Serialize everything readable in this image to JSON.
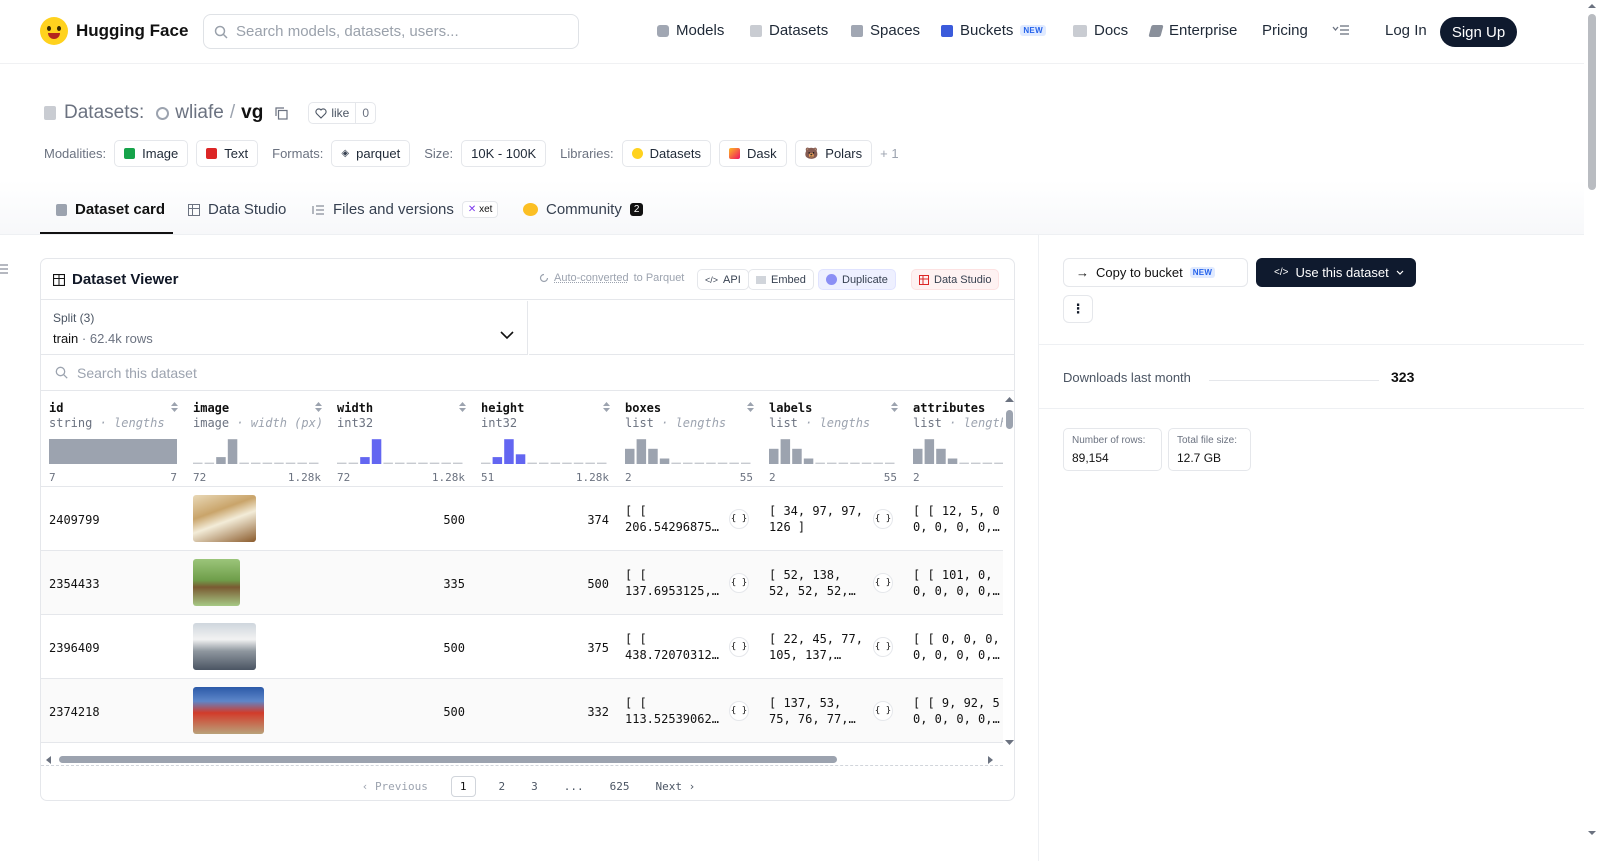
{
  "nav": {
    "brand": "Hugging Face",
    "search_placeholder": "Search models, datasets, users...",
    "items": [
      "Models",
      "Datasets",
      "Spaces",
      "Buckets",
      "Docs",
      "Enterprise",
      "Pricing"
    ],
    "new_badge": "NEW",
    "login": "Log In",
    "signup": "Sign Up"
  },
  "header": {
    "section": "Datasets:",
    "owner": "wliafe",
    "slash": "/",
    "repo": "vg",
    "like_label": "like",
    "like_count": "0",
    "modalities_label": "Modalities:",
    "modalities": [
      "Image",
      "Text"
    ],
    "formats_label": "Formats:",
    "formats": [
      "parquet"
    ],
    "size_label": "Size:",
    "size": "10K - 100K",
    "libraries_label": "Libraries:",
    "libraries": [
      "Datasets",
      "Dask",
      "Polars"
    ],
    "libraries_more": "+ 1"
  },
  "tabs": {
    "card": "Dataset card",
    "studio": "Data Studio",
    "files": "Files and versions",
    "xet": "xet",
    "community": "Community",
    "community_count": "2"
  },
  "viewer": {
    "title": "Dataset Viewer",
    "auto_converted": "Auto-converted",
    "auto_converted_suffix": "to Parquet",
    "api": "API",
    "embed": "Embed",
    "duplicate": "Duplicate",
    "data_studio": "Data Studio",
    "split_label": "Split (3)",
    "split_value": "train",
    "split_dot": "·",
    "split_rows": "62.4k rows",
    "search_placeholder": "Search this dataset",
    "columns": [
      {
        "name": "id",
        "type": "string",
        "stat": "lengths",
        "min": "7",
        "max": "7"
      },
      {
        "name": "image",
        "type": "image",
        "stat": "width (px)",
        "min": "72",
        "max": "1.28k"
      },
      {
        "name": "width",
        "type": "int32",
        "stat": "",
        "min": "72",
        "max": "1.28k"
      },
      {
        "name": "height",
        "type": "int32",
        "stat": "",
        "min": "51",
        "max": "1.28k"
      },
      {
        "name": "boxes",
        "type": "list",
        "stat": "lengths",
        "min": "2",
        "max": "55"
      },
      {
        "name": "labels",
        "type": "list",
        "stat": "lengths",
        "min": "2",
        "max": "55"
      },
      {
        "name": "attributes",
        "type": "list",
        "stat": "length",
        "min": "2",
        "max": ""
      }
    ],
    "type_sep": " · ",
    "rows": [
      {
        "id": "2409799",
        "width": "500",
        "height": "374",
        "boxes": "[ [\n206.54296875…",
        "labels": "[ 34, 97, 97,\n126 ]",
        "attributes": "[ [ 12, 5, 0\n0, 0, 0, 0,…"
      },
      {
        "id": "2354433",
        "width": "335",
        "height": "500",
        "boxes": "[ [\n137.6953125,…",
        "labels": "[ 52, 138,\n52, 52, 52,…",
        "attributes": "[ [ 101, 0,\n0, 0, 0, 0,…"
      },
      {
        "id": "2396409",
        "width": "500",
        "height": "375",
        "boxes": "[ [\n438.72070312…",
        "labels": "[ 22, 45, 77,\n105, 137,…",
        "attributes": "[ [ 0, 0, 0,\n0, 0, 0, 0,…"
      },
      {
        "id": "2374218",
        "width": "500",
        "height": "332",
        "boxes": "[ [\n113.52539062…",
        "labels": "[ 137, 53,\n75, 76, 77,…",
        "attributes": "[ [ 9, 92, 5\n0, 0, 0, 0,…"
      }
    ],
    "json_icon": "{ }",
    "pager": {
      "prev": "Previous",
      "pages": [
        "1",
        "2",
        "3",
        "...",
        "625"
      ],
      "next": "Next"
    }
  },
  "sidebar": {
    "copy_bucket": "Copy to bucket",
    "new_badge": "NEW",
    "use_dataset": "Use this dataset",
    "more": "⋮",
    "downloads_label": "Downloads last month",
    "downloads_value": "323",
    "rows_label": "Number of rows:",
    "rows_value": "89,154",
    "size_label": "Total file size:",
    "size_value": "12.7 GB"
  },
  "colors": {
    "accent": "#6366f1",
    "hist_gray": "#9ca3af",
    "dark": "#0f1a2e"
  }
}
